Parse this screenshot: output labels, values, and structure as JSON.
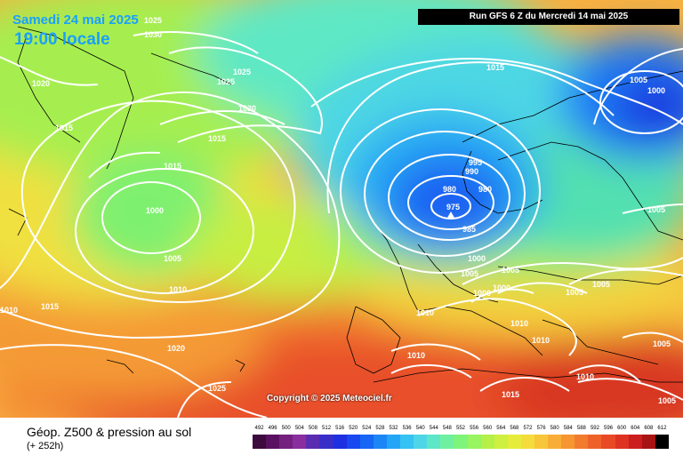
{
  "header": {
    "date": "Samedi 24 mai 2025",
    "time": "19:00 locale",
    "run": "Run GFS 6 Z du Mercredi 14 mai 2025"
  },
  "copyright": "Copyright © 2025 Meteociel.fr",
  "footer": {
    "title": "Géop. Z500 & pression au sol",
    "subtitle": "(+ 252h)"
  },
  "scale": {
    "labels": [
      "492",
      "496",
      "500",
      "504",
      "508",
      "512",
      "516",
      "520",
      "524",
      "528",
      "532",
      "536",
      "540",
      "544",
      "548",
      "552",
      "556",
      "560",
      "564",
      "568",
      "572",
      "576",
      "580",
      "584",
      "588",
      "592",
      "596",
      "600",
      "604",
      "608",
      "612"
    ],
    "colors": [
      "#3d0a3d",
      "#5a1060",
      "#74207e",
      "#8a2e9e",
      "#5a2cb0",
      "#3a2ec8",
      "#1e30e0",
      "#1a48f0",
      "#1866f4",
      "#1c86f6",
      "#24a6f6",
      "#36c2f2",
      "#4ed6e8",
      "#5ee6c8",
      "#6ef0a0",
      "#7ef47a",
      "#98f460",
      "#b4f048",
      "#cef040",
      "#e6ec3c",
      "#f4dc3c",
      "#f8c63a",
      "#f8ae36",
      "#f69632",
      "#f27c2e",
      "#ee622a",
      "#e84a26",
      "#de3222",
      "#cc1e1e",
      "#a81414",
      "#000000"
    ]
  },
  "isobars": [
    "1025",
    "1030",
    "1020",
    "1025",
    "1025",
    "1015",
    "1020",
    "1015",
    "1015",
    "1000",
    "1005",
    "1010",
    "1015",
    "1010",
    "1020",
    "1025",
    "1015",
    "995",
    "990",
    "980",
    "980",
    "975",
    "985",
    "1000",
    "1005",
    "1005",
    "1000",
    "1000",
    "1010",
    "1010",
    "1010",
    "1010",
    "1015",
    "1005",
    "1000",
    "1005",
    "1005",
    "1005",
    "1005",
    "1010",
    "1005"
  ]
}
